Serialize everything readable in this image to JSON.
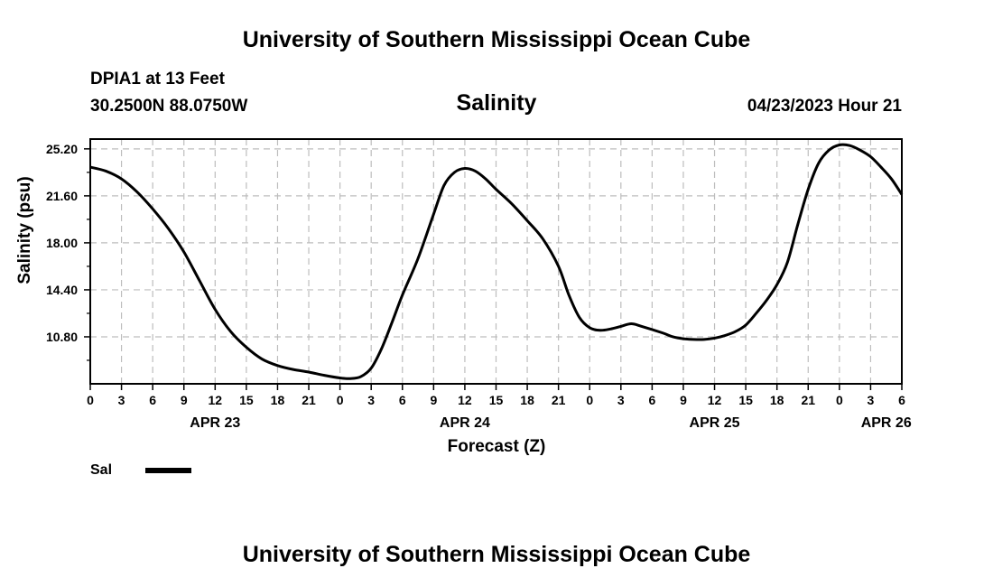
{
  "header": {
    "title": "University of Southern Mississippi Ocean Cube",
    "station": "DPIA1 at 13 Feet",
    "location": "30.2500N  88.0750W",
    "variable": "Salinity",
    "datetime": "04/23/2023 Hour 21",
    "footer_title": "University of Southern Mississippi Ocean Cube"
  },
  "legend": {
    "label": "Sal"
  },
  "chart_data": {
    "type": "line",
    "xlabel": "Forecast (Z)",
    "ylabel": "Salinity (psu)",
    "x_unit": "forecast hours from APR 23 00Z",
    "xlim": [
      0,
      78
    ],
    "ylim": [
      7.2,
      25.95
    ],
    "y_ticks": [
      10.8,
      14.4,
      18.0,
      21.6,
      25.2
    ],
    "y_tick_labels": [
      "10.80",
      "14.40",
      "18.00",
      "21.60",
      "25.20"
    ],
    "x_ticks": [
      0,
      3,
      6,
      9,
      12,
      15,
      18,
      21,
      24,
      27,
      30,
      33,
      36,
      39,
      42,
      45,
      48,
      51,
      54,
      57,
      60,
      63,
      66,
      69,
      72,
      75,
      78
    ],
    "x_tick_labels": [
      "0",
      "3",
      "6",
      "9",
      "12",
      "15",
      "18",
      "21",
      "0",
      "3",
      "6",
      "9",
      "12",
      "15",
      "18",
      "21",
      "0",
      "3",
      "6",
      "9",
      "12",
      "15",
      "18",
      "21",
      "0",
      "3",
      "6"
    ],
    "date_labels": [
      {
        "x": 12,
        "label": "APR 23"
      },
      {
        "x": 36,
        "label": "APR 24"
      },
      {
        "x": 60,
        "label": "APR 25"
      },
      {
        "x": 76.5,
        "label": "APR 26"
      }
    ],
    "grid": true,
    "legend_position": "bottom-left",
    "series": [
      {
        "name": "Sal",
        "color": "#000000",
        "x": [
          0,
          1.5,
          3,
          4.5,
          6,
          7.5,
          9,
          10.5,
          12,
          13.5,
          15,
          16.5,
          18,
          19.5,
          21,
          22.5,
          24,
          25,
          26,
          27,
          28,
          29,
          30,
          31.5,
          33,
          34,
          35,
          36,
          37,
          38,
          39,
          40.5,
          42,
          43.5,
          45,
          46,
          47,
          48,
          49,
          50,
          51,
          52,
          53,
          55,
          56,
          57,
          58,
          59,
          60,
          61,
          62,
          63,
          64,
          65,
          66,
          67,
          68,
          69,
          70,
          71,
          72,
          73,
          74,
          75,
          76,
          77,
          78
        ],
        "values": [
          23.8,
          23.5,
          22.9,
          21.9,
          20.6,
          19.1,
          17.3,
          15.1,
          12.9,
          11.2,
          10.0,
          9.1,
          8.6,
          8.3,
          8.1,
          7.85,
          7.65,
          7.6,
          7.75,
          8.4,
          9.9,
          11.9,
          14.0,
          16.8,
          20.2,
          22.4,
          23.4,
          23.7,
          23.5,
          22.9,
          22.1,
          21.0,
          19.7,
          18.3,
          16.2,
          14.0,
          12.3,
          11.5,
          11.3,
          11.4,
          11.6,
          11.8,
          11.6,
          11.1,
          10.8,
          10.65,
          10.6,
          10.6,
          10.7,
          10.9,
          11.2,
          11.7,
          12.6,
          13.6,
          14.8,
          16.5,
          19.4,
          22.1,
          24.1,
          25.1,
          25.5,
          25.45,
          25.1,
          24.6,
          23.8,
          22.9,
          21.7
        ]
      }
    ]
  }
}
